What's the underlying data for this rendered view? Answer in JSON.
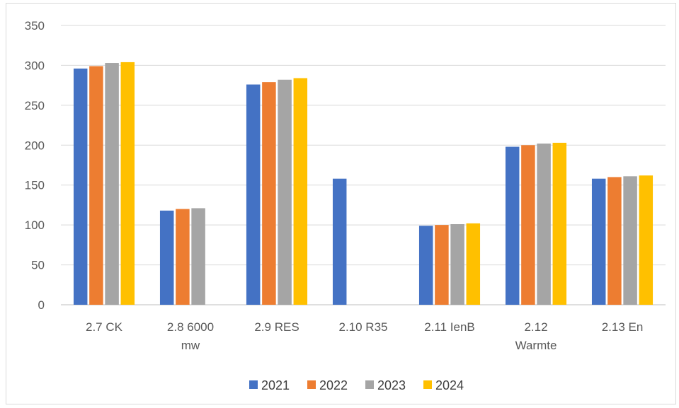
{
  "chart_data": {
    "type": "bar",
    "categories": [
      [
        "2.7 CK"
      ],
      [
        "2.8 6000",
        "mw"
      ],
      [
        "2.9 RES"
      ],
      [
        "2.10 R35"
      ],
      [
        "2.11 IenB"
      ],
      [
        "2.12",
        "Warmte"
      ],
      [
        "2.13 En"
      ]
    ],
    "series": [
      {
        "name": "2021",
        "color": "#4472c4",
        "values": [
          296,
          118,
          276,
          158,
          99,
          198,
          158
        ]
      },
      {
        "name": "2022",
        "color": "#ed7d31",
        "values": [
          299,
          120,
          279,
          null,
          100,
          200,
          160
        ]
      },
      {
        "name": "2023",
        "color": "#a5a5a5",
        "values": [
          303,
          121,
          282,
          null,
          101,
          202,
          161
        ]
      },
      {
        "name": "2024",
        "color": "#ffc000",
        "values": [
          304,
          null,
          284,
          null,
          102,
          203,
          162
        ]
      }
    ],
    "ylim": [
      0,
      350
    ],
    "yticks": [
      0,
      50,
      100,
      150,
      200,
      250,
      300,
      350
    ],
    "grid": true,
    "legend": "bottom",
    "gridColor": "#d9d9d9",
    "axisColor": "#bfbfbf"
  }
}
